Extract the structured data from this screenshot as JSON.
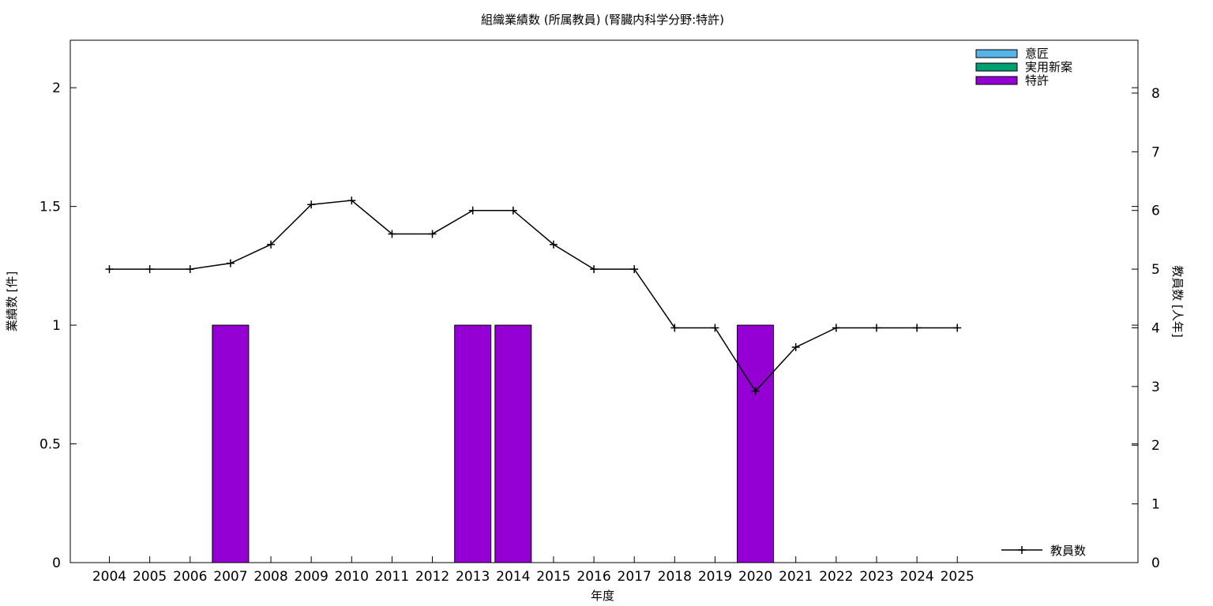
{
  "chart_data": {
    "type": "bar",
    "title": "組織業績数 (所属教員) (腎臓内科学分野:特許)",
    "xlabel": "年度",
    "ylabel": "業績数 [件]",
    "y2label": "教員数 [人年]",
    "categories": [
      "2004",
      "2005",
      "2006",
      "2007",
      "2008",
      "2009",
      "2010",
      "2011",
      "2012",
      "2013",
      "2014",
      "2015",
      "2016",
      "2017",
      "2018",
      "2019",
      "2020",
      "2021",
      "2022",
      "2023",
      "2024",
      "2025"
    ],
    "ylim": [
      0,
      2.2
    ],
    "yticks": [
      "0",
      "0.5",
      "1",
      "1.5",
      "2"
    ],
    "y2lim": [
      0,
      8.9
    ],
    "y2ticks": [
      "0",
      "1",
      "2",
      "3",
      "4",
      "5",
      "6",
      "7",
      "8"
    ],
    "series": [
      {
        "name": "意匠",
        "kind": "bar",
        "color": "#56b4e9",
        "values": [
          0,
          0,
          0,
          0,
          0,
          0,
          0,
          0,
          0,
          0,
          0,
          0,
          0,
          0,
          0,
          0,
          0,
          0,
          0,
          0,
          0,
          0
        ]
      },
      {
        "name": "実用新案",
        "kind": "bar",
        "color": "#009e73",
        "values": [
          0,
          0,
          0,
          0,
          0,
          0,
          0,
          0,
          0,
          0,
          0,
          0,
          0,
          0,
          0,
          0,
          0,
          0,
          0,
          0,
          0,
          0
        ]
      },
      {
        "name": "特許",
        "kind": "bar",
        "color": "#9400d3",
        "values": [
          0,
          0,
          0,
          1,
          0,
          0,
          0,
          0,
          0,
          1,
          1,
          0,
          0,
          0,
          0,
          0,
          1,
          0,
          0,
          0,
          0,
          0
        ]
      },
      {
        "name": "教員数",
        "kind": "line",
        "axis": "y2",
        "color": "#000000",
        "values": [
          5,
          5,
          5,
          5.1,
          5.42,
          6.1,
          6.17,
          5.6,
          5.6,
          6,
          6,
          5.42,
          5,
          5,
          4,
          4,
          2.92,
          3.67,
          4,
          4,
          4,
          4
        ]
      }
    ],
    "legend_placement": "top-right",
    "line_legend_placement": "bottom-right",
    "grid": false
  }
}
